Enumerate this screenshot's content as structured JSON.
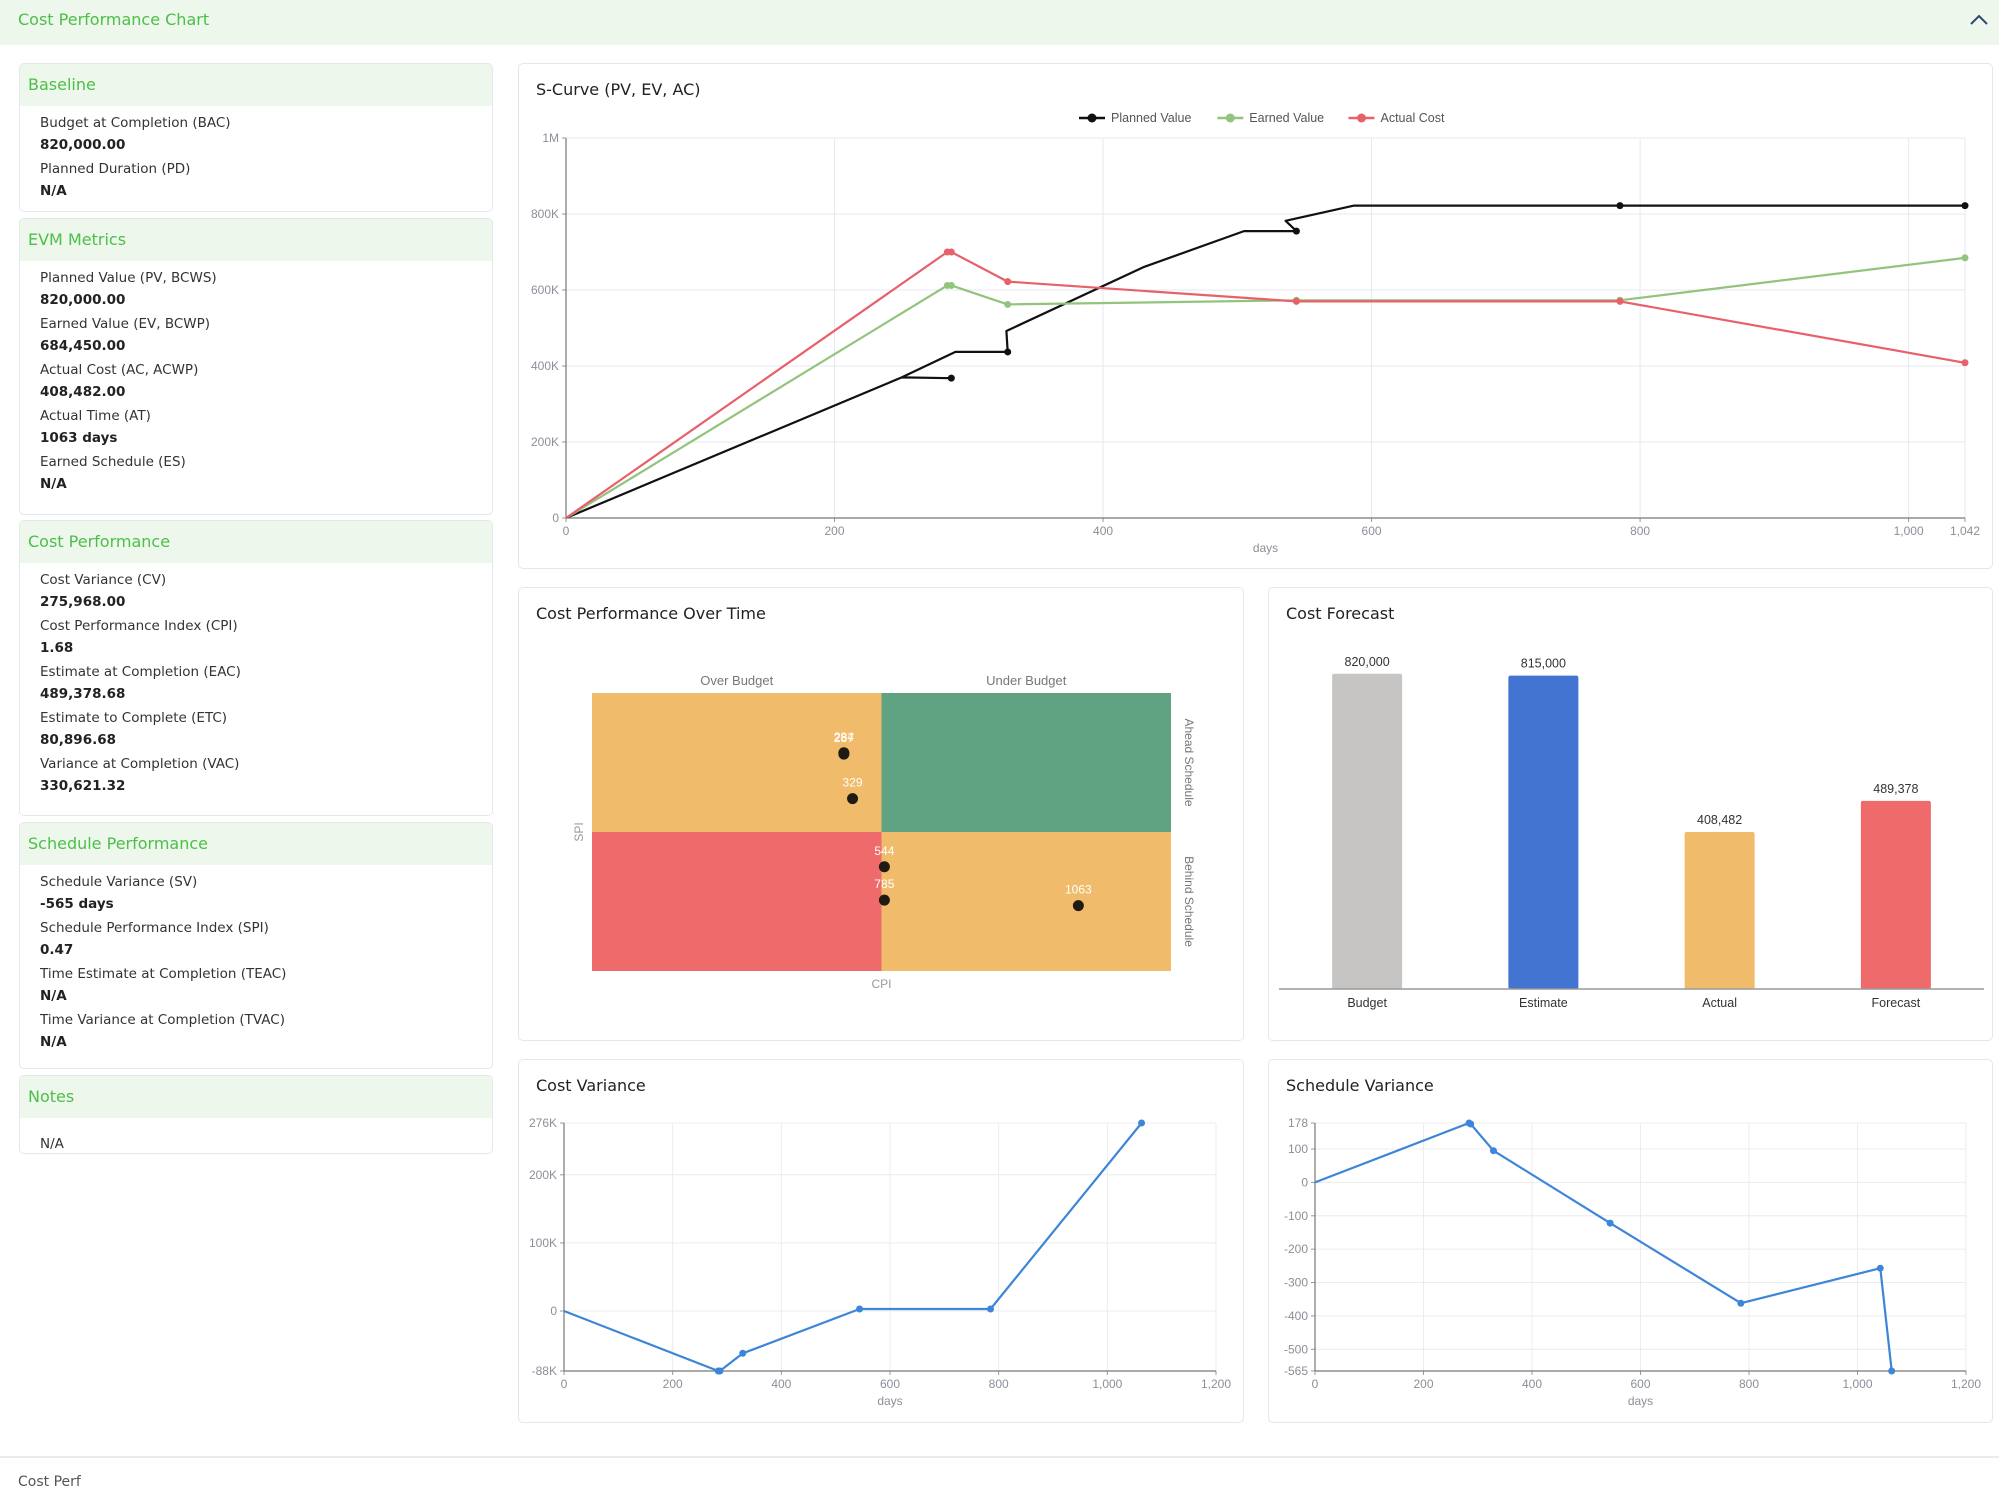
{
  "header": {
    "title": "Cost Performance Chart",
    "collapse_icon": "chevron-up-icon"
  },
  "left_panel": {
    "baseline": {
      "title": "Baseline",
      "items": [
        {
          "label": "Budget at Completion (BAC)",
          "value": "820,000.00"
        },
        {
          "label": "Planned Duration (PD)",
          "value": "N/A"
        }
      ]
    },
    "evm": {
      "title": "EVM Metrics",
      "items": [
        {
          "label": "Planned Value (PV, BCWS)",
          "value": "820,000.00"
        },
        {
          "label": "Earned Value (EV, BCWP)",
          "value": "684,450.00"
        },
        {
          "label": "Actual Cost (AC, ACWP)",
          "value": "408,482.00"
        },
        {
          "label": "Actual Time (AT)",
          "value": "1063 days"
        },
        {
          "label": "Earned Schedule (ES)",
          "value": "N/A"
        }
      ]
    },
    "cost": {
      "title": "Cost Performance",
      "items": [
        {
          "label": "Cost Variance (CV)",
          "value": "275,968.00"
        },
        {
          "label": "Cost Performance Index (CPI)",
          "value": "1.68"
        },
        {
          "label": "Estimate at Completion (EAC)",
          "value": "489,378.68"
        },
        {
          "label": "Estimate to Complete (ETC)",
          "value": "80,896.68"
        },
        {
          "label": "Variance at Completion (VAC)",
          "value": "330,621.32"
        }
      ]
    },
    "schedule": {
      "title": "Schedule Performance",
      "items": [
        {
          "label": "Schedule Variance (SV)",
          "value": "-565 days"
        },
        {
          "label": "Schedule Performance Index (SPI)",
          "value": "0.47"
        },
        {
          "label": "Time Estimate at Completion (TEAC)",
          "value": "N/A"
        },
        {
          "label": "Time Variance at Completion (TVAC)",
          "value": "N/A"
        }
      ]
    },
    "notes": {
      "title": "Notes",
      "text": "N/A"
    }
  },
  "colors": {
    "accent_green": "#4cbf48",
    "header_bg": "#edf7ec",
    "pv": "#111111",
    "ev": "#93c47d",
    "ac": "#e8606a",
    "line_blue": "#3d85d8",
    "quad_orange": "#f0bb6a",
    "quad_green": "#5fa382",
    "quad_red": "#ef6a6a",
    "bar_budget": "#c6c5c4",
    "bar_estimate": "#4474d2",
    "bar_actual": "#f0bb6a",
    "bar_forecast": "#ef6a6a"
  },
  "chart_data": [
    {
      "id": "scurve",
      "type": "line",
      "title": "S-Curve (PV, EV, AC)",
      "xlabel": "days",
      "ylabel": "",
      "xlim": [
        0,
        1042
      ],
      "ylim": [
        0,
        1000000
      ],
      "x_ticks": [
        0,
        200,
        400,
        600,
        800,
        1000,
        1042
      ],
      "x_tick_labels": [
        "0",
        "200",
        "400",
        "600",
        "800",
        "1,000",
        "1,042"
      ],
      "y_ticks": [
        0,
        200000,
        400000,
        600000,
        800000,
        1000000
      ],
      "y_tick_labels": [
        "0",
        "200K",
        "400K",
        "600K",
        "800K",
        "1M"
      ],
      "grid": true,
      "legend": "top-center",
      "series": [
        {
          "name": "Planned Value",
          "color": "#111111",
          "points": [
            [
              0,
              0
            ],
            [
              250,
              370000
            ],
            [
              287,
              368000
            ],
            [
              250,
              370000
            ],
            [
              290,
              437000
            ],
            [
              329,
              437000
            ],
            [
              328,
              492000
            ],
            [
              430,
              660000
            ],
            [
              505,
              755000
            ],
            [
              544,
              755000
            ],
            [
              536,
              782000
            ],
            [
              587,
              822000
            ],
            [
              785,
              822000
            ],
            [
              1042,
              822000
            ]
          ],
          "markers": [
            [
              287,
              368000
            ],
            [
              329,
              437000
            ],
            [
              544,
              755000
            ],
            [
              785,
              822000
            ],
            [
              1042,
              822000
            ]
          ]
        },
        {
          "name": "Earned Value",
          "color": "#93c47d",
          "points": [
            [
              0,
              0
            ],
            [
              284,
              612000
            ],
            [
              287,
              612000
            ],
            [
              329,
              562000
            ],
            [
              544,
              573000
            ],
            [
              785,
              573000
            ],
            [
              1042,
              684450
            ]
          ],
          "markers": [
            [
              284,
              612000
            ],
            [
              287,
              612000
            ],
            [
              329,
              562000
            ],
            [
              544,
              573000
            ],
            [
              785,
              573000
            ],
            [
              1042,
              684450
            ]
          ]
        },
        {
          "name": "Actual Cost",
          "color": "#e8606a",
          "points": [
            [
              0,
              0
            ],
            [
              284,
              700000
            ],
            [
              287,
              700000
            ],
            [
              329,
              622000
            ],
            [
              544,
              570000
            ],
            [
              785,
              570000
            ],
            [
              1042,
              408482
            ]
          ],
          "markers": [
            [
              284,
              700000
            ],
            [
              287,
              700000
            ],
            [
              329,
              622000
            ],
            [
              544,
              570000
            ],
            [
              785,
              570000
            ],
            [
              1042,
              408482
            ]
          ]
        }
      ]
    },
    {
      "id": "quadrant",
      "type": "scatter",
      "title": "Cost Performance Over Time",
      "xlabel": "CPI",
      "ylabel": "SPI",
      "quadrant_labels": {
        "top_left": "Over Budget",
        "top_right": "Under Budget",
        "right_top": "Ahead Schedule",
        "right_bottom": "Behind Schedule"
      },
      "xlim": [
        0,
        2
      ],
      "ylim": [
        0,
        2
      ],
      "center": [
        1,
        1
      ],
      "points": [
        {
          "label": "284",
          "cpi": 0.87,
          "spi": 1.57
        },
        {
          "label": "287",
          "cpi": 0.87,
          "spi": 1.56
        },
        {
          "label": "329",
          "cpi": 0.9,
          "spi": 1.24
        },
        {
          "label": "544",
          "cpi": 1.01,
          "spi": 0.75
        },
        {
          "label": "785",
          "cpi": 1.01,
          "spi": 0.51
        },
        {
          "label": "1063",
          "cpi": 1.68,
          "spi": 0.47
        }
      ]
    },
    {
      "id": "forecast",
      "type": "bar",
      "title": "Cost Forecast",
      "categories": [
        "Budget",
        "Estimate",
        "Actual",
        "Forecast"
      ],
      "values": [
        820000,
        815000,
        408482,
        489378
      ],
      "value_labels": [
        "820,000",
        "815,000",
        "408,482",
        "489,378"
      ],
      "colors": [
        "#c6c5c4",
        "#4474d2",
        "#f0bb6a",
        "#ef6a6a"
      ],
      "ylim": [
        0,
        900000
      ],
      "xlabel": "",
      "ylabel": ""
    },
    {
      "id": "cv",
      "type": "line",
      "title": "Cost Variance",
      "xlabel": "days",
      "xlim": [
        0,
        1200
      ],
      "ylim": [
        -88000,
        276000
      ],
      "x_ticks": [
        0,
        200,
        400,
        600,
        800,
        1000,
        1200
      ],
      "x_tick_labels": [
        "0",
        "200",
        "400",
        "600",
        "800",
        "1,000",
        "1,200"
      ],
      "y_ticks": [
        -88000,
        0,
        100000,
        200000,
        276000
      ],
      "y_tick_labels": [
        "-88K",
        "0",
        "100K",
        "200K",
        "276K"
      ],
      "grid": true,
      "color": "#3d85d8",
      "points": [
        [
          0,
          0
        ],
        [
          284,
          -88000
        ],
        [
          287,
          -88000
        ],
        [
          329,
          -62000
        ],
        [
          544,
          3000
        ],
        [
          785,
          3000
        ],
        [
          1063,
          275968
        ]
      ],
      "markers": [
        [
          284,
          -88000
        ],
        [
          287,
          -88000
        ],
        [
          329,
          -62000
        ],
        [
          544,
          3000
        ],
        [
          785,
          3000
        ],
        [
          1063,
          275968
        ]
      ]
    },
    {
      "id": "sv",
      "type": "line",
      "title": "Schedule Variance",
      "xlabel": "days",
      "xlim": [
        0,
        1200
      ],
      "ylim": [
        -565,
        178
      ],
      "x_ticks": [
        0,
        200,
        400,
        600,
        800,
        1000,
        1200
      ],
      "x_tick_labels": [
        "0",
        "200",
        "400",
        "600",
        "800",
        "1,000",
        "1,200"
      ],
      "y_ticks": [
        -565,
        -500,
        -400,
        -300,
        -200,
        -100,
        0,
        100,
        178
      ],
      "y_tick_labels": [
        "-565",
        "-500",
        "-400",
        "-300",
        "-200",
        "-100",
        "0",
        "100",
        "178"
      ],
      "grid": true,
      "color": "#3d85d8",
      "points": [
        [
          0,
          0
        ],
        [
          284,
          178
        ],
        [
          287,
          175
        ],
        [
          329,
          95
        ],
        [
          544,
          -122
        ],
        [
          785,
          -362
        ],
        [
          1042,
          -257
        ],
        [
          1063,
          -565
        ]
      ],
      "markers": [
        [
          284,
          178
        ],
        [
          287,
          175
        ],
        [
          329,
          95
        ],
        [
          544,
          -122
        ],
        [
          785,
          -362
        ],
        [
          1042,
          -257
        ],
        [
          1063,
          -565
        ]
      ]
    }
  ],
  "footer": {
    "partial_section_title": "Cost Perf"
  }
}
